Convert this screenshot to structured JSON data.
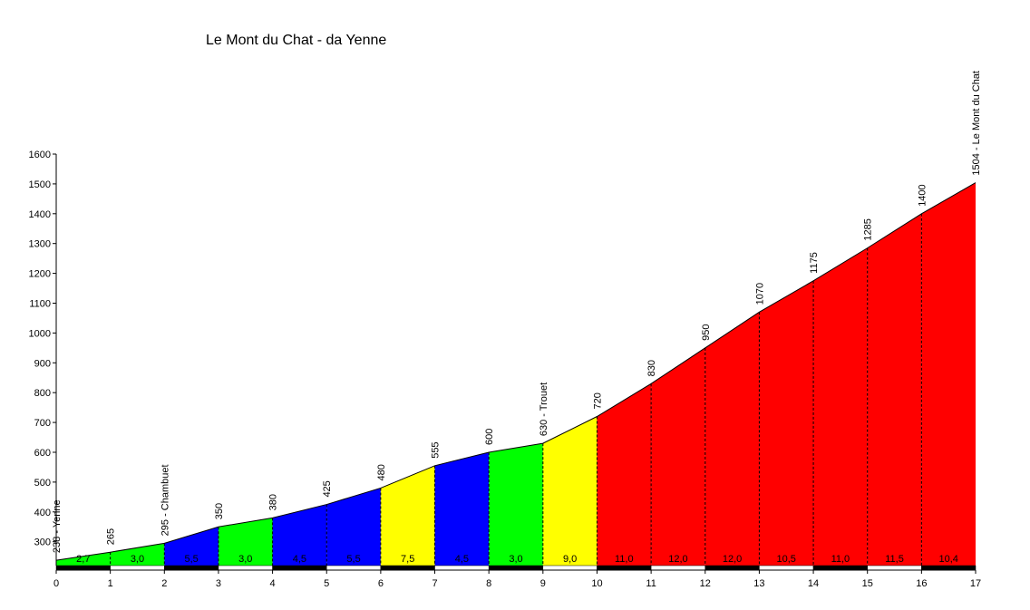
{
  "chart_data": {
    "type": "area",
    "title": "Le Mont du Chat - da Yenne",
    "xlabel": "",
    "ylabel": "",
    "xlim": [
      0,
      17
    ],
    "ylim": [
      220,
      1600
    ],
    "x_ticks": [
      "0",
      "1",
      "2",
      "3",
      "4",
      "5",
      "6",
      "7",
      "8",
      "9",
      "10",
      "11",
      "12",
      "13",
      "14",
      "15",
      "16",
      "17"
    ],
    "y_ticks": [
      "300",
      "400",
      "500",
      "600",
      "700",
      "800",
      "900",
      "1000",
      "1100",
      "1200",
      "1300",
      "1400",
      "1500",
      "1600"
    ],
    "x": [
      0,
      1,
      2,
      3,
      4,
      5,
      6,
      7,
      8,
      9,
      10,
      11,
      12,
      13,
      14,
      15,
      16,
      17
    ],
    "altitude": [
      238,
      265,
      295,
      350,
      380,
      425,
      480,
      555,
      600,
      630,
      720,
      830,
      950,
      1070,
      1175,
      1285,
      1400,
      1504
    ],
    "point_labels": [
      "238 - Yenne",
      "265",
      "295 - Chambuet",
      "350",
      "380",
      "425",
      "480",
      "555",
      "600",
      "630 - Trouet",
      "720",
      "830",
      "950",
      "1070",
      "1175",
      "1285",
      "1400",
      "1504 - Le Mont du Chat"
    ],
    "gradients": [
      "2,7",
      "3,0",
      "5,5",
      "3,0",
      "4,5",
      "5,5",
      "7,5",
      "4,5",
      "3,0",
      "9,0",
      "11,0",
      "12,0",
      "12,0",
      "10,5",
      "11,0",
      "11,5",
      "10,4"
    ],
    "segment_colors": [
      "#00ff00",
      "#00ff00",
      "#0000ff",
      "#00ff00",
      "#0000ff",
      "#0000ff",
      "#ffff00",
      "#0000ff",
      "#00ff00",
      "#ffff00",
      "#ff0000",
      "#ff0000",
      "#ff0000",
      "#ff0000",
      "#ff0000",
      "#ff0000",
      "#ff0000"
    ],
    "grid": false
  }
}
